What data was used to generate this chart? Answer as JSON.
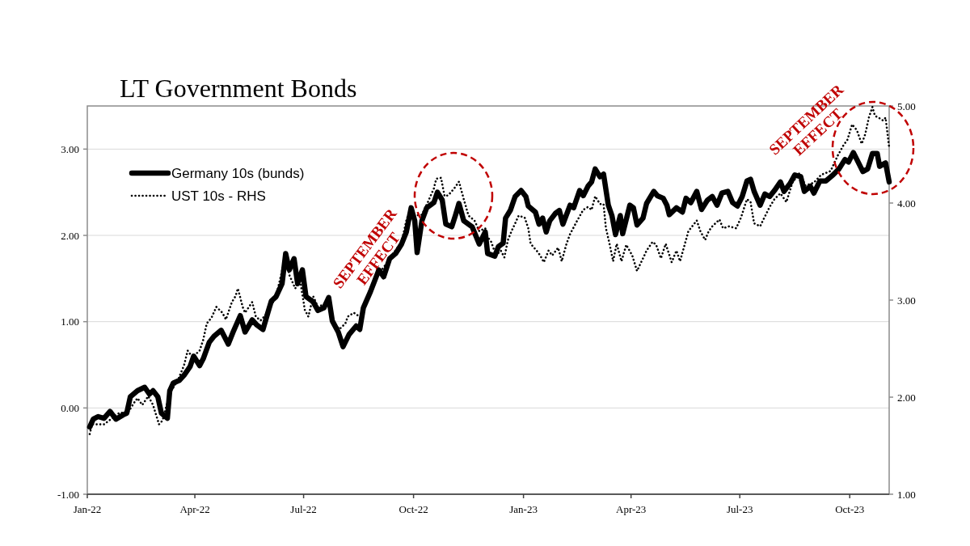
{
  "chart_data": {
    "type": "line",
    "title": "LT Government Bonds",
    "xlim": [
      "2022-01-01",
      "2023-11-03"
    ],
    "xticks": [
      {
        "value": "2022-01-01",
        "label": "Jan-22"
      },
      {
        "value": "2022-04-01",
        "label": "Apr-22"
      },
      {
        "value": "2022-07-01",
        "label": "Jul-22"
      },
      {
        "value": "2022-10-01",
        "label": "Oct-22"
      },
      {
        "value": "2023-01-01",
        "label": "Jan-23"
      },
      {
        "value": "2023-04-01",
        "label": "Apr-23"
      },
      {
        "value": "2023-07-01",
        "label": "Jul-23"
      },
      {
        "value": "2023-10-01",
        "label": "Oct-23"
      }
    ],
    "ylim": [
      -1,
      3.5
    ],
    "yticks": [
      {
        "value": -1,
        "label": "-1.00"
      },
      {
        "value": 0,
        "label": "0.00"
      },
      {
        "value": 1,
        "label": "1.00"
      },
      {
        "value": 2,
        "label": "2.00"
      },
      {
        "value": 3,
        "label": "3.00"
      }
    ],
    "y2lim": [
      1,
      5
    ],
    "y2ticks": [
      {
        "value": 1,
        "label": "1.00"
      },
      {
        "value": 2,
        "label": "2.00"
      },
      {
        "value": 3,
        "label": "3.00"
      },
      {
        "value": 4,
        "label": "4.00"
      },
      {
        "value": 5,
        "label": "5.00"
      }
    ],
    "grid": "y",
    "legend": "top left",
    "annotations": [
      "SEPTEMBER\nEFFECT",
      "SEPTEMBER\nEFFECT"
    ],
    "series": [
      {
        "name": "Germany 10s (bunds)",
        "color": "#000000",
        "line_style": "solid",
        "x": [
          "2022-01-03",
          "2022-01-06",
          "2022-01-10",
          "2022-01-15",
          "2022-01-20",
          "2022-01-25",
          "2022-01-31",
          "2022-02-03",
          "2022-02-06",
          "2022-02-12",
          "2022-02-18",
          "2022-02-22",
          "2022-02-25",
          "2022-03-01",
          "2022-03-04",
          "2022-03-09",
          "2022-03-11",
          "2022-03-14",
          "2022-03-19",
          "2022-03-23",
          "2022-03-28",
          "2022-03-31",
          "2022-04-05",
          "2022-04-08",
          "2022-04-13",
          "2022-04-17",
          "2022-04-23",
          "2022-04-29",
          "2022-05-03",
          "2022-05-09",
          "2022-05-13",
          "2022-05-19",
          "2022-05-23",
          "2022-05-28",
          "2022-06-01",
          "2022-06-04",
          "2022-06-08",
          "2022-06-13",
          "2022-06-16",
          "2022-06-19",
          "2022-06-23",
          "2022-06-26",
          "2022-06-30",
          "2022-07-03",
          "2022-07-09",
          "2022-07-13",
          "2022-07-18",
          "2022-07-22",
          "2022-07-25",
          "2022-07-30",
          "2022-08-03",
          "2022-08-08",
          "2022-08-14",
          "2022-08-17",
          "2022-08-20",
          "2022-08-26",
          "2022-09-02",
          "2022-09-06",
          "2022-09-11",
          "2022-09-16",
          "2022-09-21",
          "2022-09-25",
          "2022-09-29",
          "2022-10-02",
          "2022-10-04",
          "2022-10-08",
          "2022-10-12",
          "2022-10-18",
          "2022-10-21",
          "2022-10-25",
          "2022-10-28",
          "2022-11-02",
          "2022-11-05",
          "2022-11-08",
          "2022-11-12",
          "2022-11-19",
          "2022-11-25",
          "2022-11-30",
          "2022-12-02",
          "2022-12-08",
          "2022-12-11",
          "2022-12-15",
          "2022-12-17",
          "2022-12-21",
          "2022-12-25",
          "2022-12-30",
          "2023-01-03",
          "2023-01-05",
          "2023-01-11",
          "2023-01-14",
          "2023-01-17",
          "2023-01-20",
          "2023-01-23",
          "2023-01-28",
          "2023-01-31",
          "2023-02-03",
          "2023-02-09",
          "2023-02-12",
          "2023-02-17",
          "2023-02-20",
          "2023-02-24",
          "2023-02-27",
          "2023-03-02",
          "2023-03-06",
          "2023-03-09",
          "2023-03-13",
          "2023-03-16",
          "2023-03-19",
          "2023-03-23",
          "2023-03-25",
          "2023-03-31",
          "2023-04-03",
          "2023-04-06",
          "2023-04-11",
          "2023-04-14",
          "2023-04-20",
          "2023-04-23",
          "2023-04-28",
          "2023-05-01",
          "2023-05-03",
          "2023-05-09",
          "2023-05-14",
          "2023-05-17",
          "2023-05-21",
          "2023-05-26",
          "2023-05-30",
          "2023-06-04",
          "2023-06-08",
          "2023-06-12",
          "2023-06-16",
          "2023-06-21",
          "2023-06-25",
          "2023-06-29",
          "2023-07-03",
          "2023-07-07",
          "2023-07-10",
          "2023-07-13",
          "2023-07-18",
          "2023-07-22",
          "2023-07-26",
          "2023-07-30",
          "2023-08-04",
          "2023-08-07",
          "2023-08-12",
          "2023-08-16",
          "2023-08-21",
          "2023-08-24",
          "2023-08-29",
          "2023-09-01",
          "2023-09-06",
          "2023-09-11",
          "2023-09-17",
          "2023-09-22",
          "2023-09-27",
          "2023-09-30",
          "2023-10-04",
          "2023-10-07",
          "2023-10-12",
          "2023-10-16",
          "2023-10-20",
          "2023-10-24",
          "2023-10-26",
          "2023-10-31",
          "2023-11-03"
        ],
        "values": [
          -0.22,
          -0.13,
          -0.1,
          -0.12,
          -0.04,
          -0.13,
          -0.08,
          -0.06,
          0.13,
          0.2,
          0.24,
          0.16,
          0.2,
          0.13,
          -0.06,
          -0.12,
          0.2,
          0.29,
          0.32,
          0.38,
          0.48,
          0.6,
          0.49,
          0.57,
          0.76,
          0.83,
          0.9,
          0.74,
          0.88,
          1.07,
          0.88,
          1.02,
          0.96,
          0.91,
          1.1,
          1.24,
          1.29,
          1.44,
          1.79,
          1.6,
          1.73,
          1.44,
          1.6,
          1.29,
          1.23,
          1.13,
          1.16,
          1.28,
          1.01,
          0.88,
          0.71,
          0.85,
          0.95,
          0.91,
          1.16,
          1.35,
          1.6,
          1.52,
          1.73,
          1.79,
          1.9,
          2.04,
          2.32,
          2.17,
          1.8,
          2.17,
          2.32,
          2.38,
          2.5,
          2.41,
          2.13,
          2.1,
          2.23,
          2.37,
          2.17,
          2.1,
          1.9,
          2.04,
          1.79,
          1.76,
          1.87,
          1.91,
          2.2,
          2.29,
          2.45,
          2.52,
          2.45,
          2.34,
          2.27,
          2.13,
          2.2,
          2.04,
          2.17,
          2.26,
          2.29,
          2.13,
          2.35,
          2.32,
          2.52,
          2.46,
          2.57,
          2.62,
          2.77,
          2.68,
          2.71,
          2.35,
          2.23,
          2.01,
          2.23,
          2.02,
          2.35,
          2.32,
          2.12,
          2.2,
          2.37,
          2.51,
          2.46,
          2.43,
          2.35,
          2.24,
          2.32,
          2.27,
          2.43,
          2.38,
          2.51,
          2.3,
          2.41,
          2.45,
          2.35,
          2.49,
          2.51,
          2.38,
          2.34,
          2.45,
          2.63,
          2.65,
          2.51,
          2.35,
          2.48,
          2.45,
          2.52,
          2.62,
          2.51,
          2.6,
          2.7,
          2.68,
          2.51,
          2.57,
          2.49,
          2.63,
          2.63,
          2.7,
          2.77,
          2.88,
          2.85,
          2.96,
          2.88,
          2.74,
          2.77,
          2.95,
          2.95,
          2.8,
          2.84,
          2.62
        ]
      },
      {
        "name": "UST 10s - RHS",
        "color": "#000000",
        "line_style": "dotted",
        "axis": "y2",
        "x": [
          "2022-01-03",
          "2022-01-05",
          "2022-01-15",
          "2022-01-28",
          "2022-02-04",
          "2022-02-09",
          "2022-02-12",
          "2022-02-16",
          "2022-02-21",
          "2022-02-25",
          "2022-03-02",
          "2022-03-05",
          "2022-03-11",
          "2022-03-18",
          "2022-03-23",
          "2022-03-26",
          "2022-03-30",
          "2022-04-05",
          "2022-04-08",
          "2022-04-11",
          "2022-04-15",
          "2022-04-19",
          "2022-04-24",
          "2022-04-27",
          "2022-05-02",
          "2022-05-05",
          "2022-05-07",
          "2022-05-11",
          "2022-05-13",
          "2022-05-19",
          "2022-05-22",
          "2022-05-26",
          "2022-06-01",
          "2022-06-08",
          "2022-06-16",
          "2022-06-19",
          "2022-06-24",
          "2022-06-28",
          "2022-07-02",
          "2022-07-05",
          "2022-07-09",
          "2022-07-13",
          "2022-07-22",
          "2022-07-25",
          "2022-07-31",
          "2022-08-05",
          "2022-08-07",
          "2022-08-12",
          "2022-08-18",
          "2022-08-23",
          "2022-08-29",
          "2022-09-05",
          "2022-09-14",
          "2022-09-21",
          "2022-09-25",
          "2022-09-29",
          "2022-10-02",
          "2022-10-08",
          "2022-10-13",
          "2022-10-18",
          "2022-10-20",
          "2022-10-24",
          "2022-10-27",
          "2022-10-30",
          "2022-11-04",
          "2022-11-08",
          "2022-11-12",
          "2022-11-16",
          "2022-11-21",
          "2022-11-25",
          "2022-11-30",
          "2022-12-02",
          "2022-12-05",
          "2022-12-09",
          "2022-12-13",
          "2022-12-16",
          "2022-12-19",
          "2022-12-22",
          "2022-12-28",
          "2023-01-02",
          "2023-01-05",
          "2023-01-07",
          "2023-01-12",
          "2023-01-15",
          "2023-01-18",
          "2023-01-22",
          "2023-01-25",
          "2023-01-30",
          "2023-02-02",
          "2023-02-06",
          "2023-02-09",
          "2023-02-15",
          "2023-02-20",
          "2023-02-24",
          "2023-02-27",
          "2023-03-02",
          "2023-03-06",
          "2023-03-09",
          "2023-03-11",
          "2023-03-14",
          "2023-03-17",
          "2023-03-20",
          "2023-03-24",
          "2023-03-28",
          "2023-04-02",
          "2023-04-06",
          "2023-04-11",
          "2023-04-14",
          "2023-04-19",
          "2023-04-22",
          "2023-04-26",
          "2023-04-30",
          "2023-05-05",
          "2023-05-09",
          "2023-05-12",
          "2023-05-17",
          "2023-05-19",
          "2023-05-26",
          "2023-05-29",
          "2023-06-02",
          "2023-06-05",
          "2023-06-08",
          "2023-06-14",
          "2023-06-17",
          "2023-06-22",
          "2023-06-28",
          "2023-07-02",
          "2023-07-07",
          "2023-07-10",
          "2023-07-13",
          "2023-07-18",
          "2023-07-22",
          "2023-07-26",
          "2023-07-30",
          "2023-08-04",
          "2023-08-09",
          "2023-08-14",
          "2023-08-20",
          "2023-08-25",
          "2023-09-01",
          "2023-09-07",
          "2023-09-15",
          "2023-09-21",
          "2023-09-26",
          "2023-09-29",
          "2023-10-03",
          "2023-10-07",
          "2023-10-11",
          "2023-10-14",
          "2023-10-17",
          "2023-10-20",
          "2023-10-22",
          "2023-10-25",
          "2023-10-29",
          "2023-10-31",
          "2023-11-03"
        ],
        "values": [
          1.62,
          1.72,
          1.72,
          1.84,
          1.84,
          1.94,
          1.99,
          1.92,
          2.01,
          1.92,
          1.72,
          1.76,
          2.04,
          2.18,
          2.33,
          2.48,
          2.41,
          2.48,
          2.59,
          2.76,
          2.82,
          2.93,
          2.87,
          2.8,
          2.98,
          3.04,
          3.12,
          2.93,
          2.87,
          2.98,
          2.83,
          2.79,
          2.87,
          3.04,
          3.46,
          3.26,
          3.12,
          3.21,
          2.9,
          2.83,
          3.04,
          2.93,
          2.98,
          2.79,
          2.7,
          2.76,
          2.83,
          2.87,
          2.82,
          3.01,
          3.21,
          3.32,
          3.48,
          3.6,
          3.82,
          3.97,
          3.87,
          3.88,
          4.01,
          4.15,
          4.25,
          4.26,
          4.07,
          4.08,
          4.15,
          4.22,
          4.04,
          3.87,
          3.82,
          3.71,
          3.74,
          3.65,
          3.6,
          3.46,
          3.51,
          3.44,
          3.62,
          3.71,
          3.87,
          3.85,
          3.74,
          3.58,
          3.51,
          3.46,
          3.39,
          3.51,
          3.46,
          3.54,
          3.4,
          3.58,
          3.68,
          3.82,
          3.93,
          3.96,
          3.93,
          4.07,
          3.99,
          3.99,
          3.74,
          3.58,
          3.4,
          3.58,
          3.4,
          3.57,
          3.46,
          3.3,
          3.43,
          3.51,
          3.6,
          3.57,
          3.43,
          3.58,
          3.39,
          3.51,
          3.4,
          3.62,
          3.71,
          3.82,
          3.71,
          3.62,
          3.71,
          3.76,
          3.83,
          3.74,
          3.76,
          3.74,
          3.85,
          4.04,
          4.01,
          3.79,
          3.76,
          3.86,
          3.96,
          4.04,
          4.1,
          4.01,
          4.21,
          4.31,
          4.18,
          4.21,
          4.29,
          4.33,
          4.49,
          4.6,
          4.65,
          4.81,
          4.75,
          4.61,
          4.71,
          4.88,
          4.99,
          4.9,
          4.88,
          4.85,
          4.88,
          4.57
        ]
      }
    ]
  }
}
